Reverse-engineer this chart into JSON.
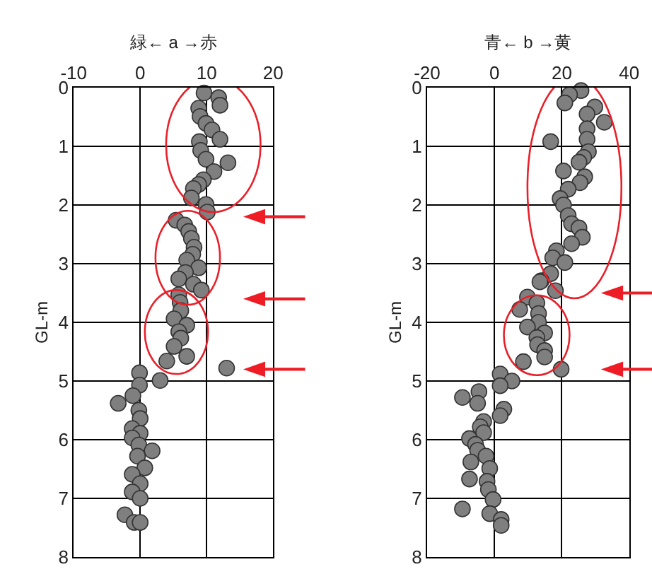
{
  "chart_data": [
    {
      "type": "scatter",
      "xlabel": "緑← a →赤",
      "ylabel": "GL-m",
      "xlim": [
        -10,
        20
      ],
      "xticks": [
        -10,
        0,
        10,
        20
      ],
      "ylim": [
        8,
        0
      ],
      "yticks": [
        0,
        1,
        2,
        3,
        4,
        5,
        6,
        7,
        8
      ],
      "grid": true,
      "marker": "circle",
      "series": [
        {
          "color": "#7f7f7f",
          "x": [
            9.6,
            11.8,
            12,
            8.8,
            9,
            9.9,
            10.8,
            12,
            8.9,
            9.1,
            9.9,
            13.2,
            11.1,
            9.5,
            8.8,
            8,
            7.7,
            9.9,
            10.1,
            5.4,
            6.7,
            7.3,
            7.7,
            8.1,
            7.9,
            7,
            8.8,
            6.8,
            5.8,
            8,
            9.2,
            5.8,
            6,
            6.1,
            5.1,
            7,
            5.8,
            6.1,
            5.1,
            7,
            4,
            13,
            -0.1,
            3,
            -0.1,
            -1.1,
            -3.3,
            -0.2,
            0,
            -1.2,
            0,
            -1.2,
            -0.2,
            1.8,
            -0.4,
            0.7,
            -1.2,
            0,
            -1.2,
            0,
            -2.3,
            -0.9,
            0
          ],
          "values": [
            0.09,
            0.17,
            0.3,
            0.35,
            0.49,
            0.61,
            0.72,
            0.88,
            0.92,
            1.07,
            1.22,
            1.28,
            1.43,
            1.57,
            1.65,
            1.72,
            1.88,
            1.99,
            2.12,
            2.26,
            2.34,
            2.45,
            2.57,
            2.72,
            2.84,
            2.94,
            3.07,
            3.15,
            3.26,
            3.35,
            3.45,
            3.53,
            3.66,
            3.8,
            3.94,
            4.05,
            4.16,
            4.27,
            4.41,
            4.58,
            4.66,
            4.78,
            4.86,
            4.99,
            5.07,
            5.25,
            5.38,
            5.5,
            5.64,
            5.81,
            5.89,
            5.97,
            6.09,
            6.19,
            6.28,
            6.48,
            6.59,
            6.75,
            6.89,
            7.0,
            7.28,
            7.41,
            7.41
          ]
        }
      ]
    },
    {
      "type": "scatter",
      "xlabel": "青← b →黄",
      "ylabel": "GL-m",
      "xlim": [
        -20,
        40
      ],
      "xticks": [
        -20,
        0,
        20,
        40
      ],
      "ylim": [
        8,
        0
      ],
      "yticks": [
        0,
        1,
        2,
        3,
        4,
        5,
        6,
        7,
        8
      ],
      "grid": true,
      "marker": "circle",
      "series": [
        {
          "color": "#7f7f7f",
          "x": [
            25.7,
            22.3,
            20.9,
            29.8,
            27.5,
            32.6,
            27.5,
            27.5,
            16.7,
            27.9,
            26.5,
            25.1,
            20.5,
            26.8,
            25.4,
            21.9,
            19.5,
            20.5,
            21.9,
            22.9,
            25.1,
            26.1,
            22.9,
            18.4,
            17.3,
            20.9,
            16.7,
            13.9,
            13.5,
            18.1,
            9.8,
            7.5,
            12.6,
            13.1,
            13.1,
            9.8,
            14.9,
            12.6,
            12.8,
            14.9,
            14.9,
            8.6,
            19.8,
            1.7,
            5.2,
            1.7,
            -4.6,
            -9.5,
            -5,
            2.8,
            1.7,
            -3.2,
            -4.2,
            -3.2,
            -7.4,
            -5.6,
            -5,
            -2.5,
            -7,
            -1.4,
            -7.4,
            -2.2,
            -1.8,
            -0.4,
            -9.5,
            -1.4,
            2,
            2
          ],
          "values": [
            0.05,
            0.12,
            0.26,
            0.33,
            0.45,
            0.59,
            0.7,
            0.88,
            0.92,
            1.09,
            1.19,
            1.27,
            1.42,
            1.52,
            1.62,
            1.73,
            1.89,
            2.0,
            2.18,
            2.32,
            2.39,
            2.55,
            2.66,
            2.78,
            2.9,
            2.98,
            3.17,
            3.29,
            3.31,
            3.46,
            3.57,
            3.78,
            3.67,
            3.85,
            4.0,
            4.08,
            4.18,
            4.26,
            4.38,
            4.48,
            4.59,
            4.67,
            4.8,
            4.88,
            5.0,
            5.08,
            5.18,
            5.28,
            5.38,
            5.48,
            5.59,
            5.69,
            5.78,
            5.88,
            5.98,
            6.08,
            6.18,
            6.28,
            6.38,
            6.49,
            6.67,
            6.71,
            6.85,
            7.02,
            7.18,
            7.26,
            7.36,
            7.46
          ]
        }
      ]
    }
  ]
}
